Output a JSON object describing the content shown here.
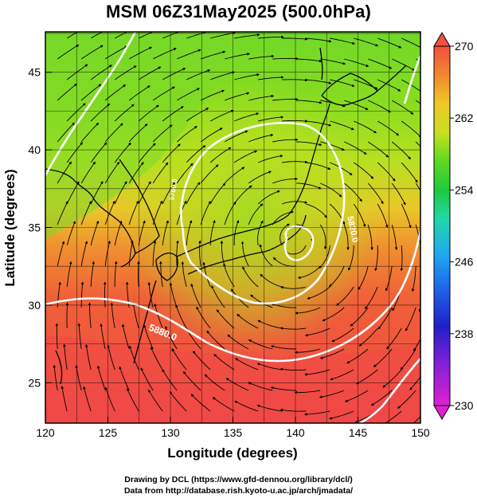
{
  "title": "MSM 06Z31May2025 (500.0hPa)",
  "x_axis": {
    "label": "Longitude (degrees)",
    "ticks": [
      "120",
      "125",
      "130",
      "135",
      "140",
      "145",
      "150"
    ],
    "range": [
      120,
      150
    ]
  },
  "y_axis": {
    "label": "Latitude  (degrees)",
    "ticks": [
      "25",
      "30",
      "35",
      "40",
      "45"
    ],
    "range": [
      22.4,
      47.6
    ]
  },
  "colorbar": {
    "ticks": [
      "270",
      "262",
      "254",
      "246",
      "238",
      "230"
    ],
    "range": [
      230,
      270
    ],
    "colors": [
      "#e020d0",
      "#8020d8",
      "#2020c8",
      "#2060e8",
      "#20a8f0",
      "#20d8a8",
      "#20c840",
      "#60d820",
      "#c8e020",
      "#f0c828",
      "#f08830",
      "#f05040"
    ]
  },
  "contours": [
    {
      "label": "5880.0"
    },
    {
      "label": "5820.0"
    },
    {
      "label": "5760.0"
    }
  ],
  "footer": {
    "line1": "Drawing by DCL (https://www.gfd-dennou.org/library/dcl/)",
    "line2": "Data from http://database.rish.kyoto-u.ac.jp/arch/jmadata/"
  },
  "colors": {
    "frame": "#000000",
    "contour": "#ffffff",
    "coast": "#000000"
  }
}
